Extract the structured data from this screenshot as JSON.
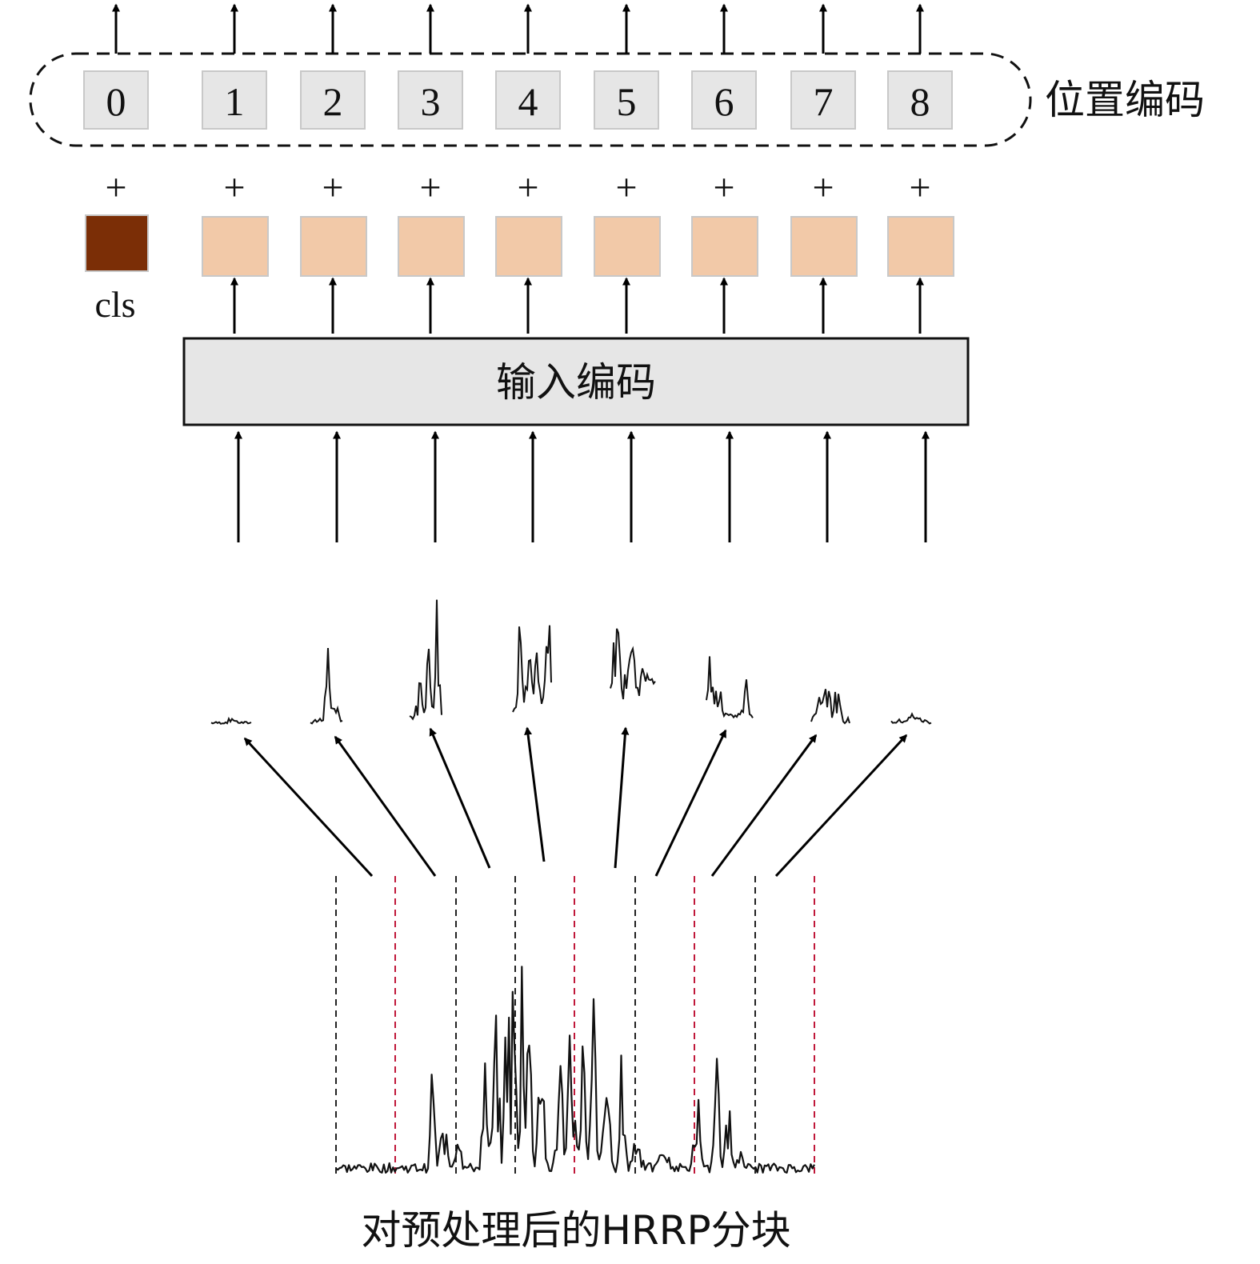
{
  "labels": {
    "position_encoding": "位置编码",
    "input_encoding": "输入编码",
    "cls": "cls",
    "plus": "+",
    "bottom_caption": "对预处理后的HRRP分块"
  },
  "position_indices": [
    "0",
    "1",
    "2",
    "3",
    "4",
    "5",
    "6",
    "7",
    "8"
  ],
  "patch_count": 8,
  "colors": {
    "cls_token": "#7b2e06",
    "patch_token": "#f2c9a8",
    "token_border": "#c8c8c8",
    "index_box": "#e6e6e6",
    "input_box": "#e6e6e6",
    "signal": "#111111",
    "divider_black": "#222222",
    "divider_red": "#c0183a"
  }
}
